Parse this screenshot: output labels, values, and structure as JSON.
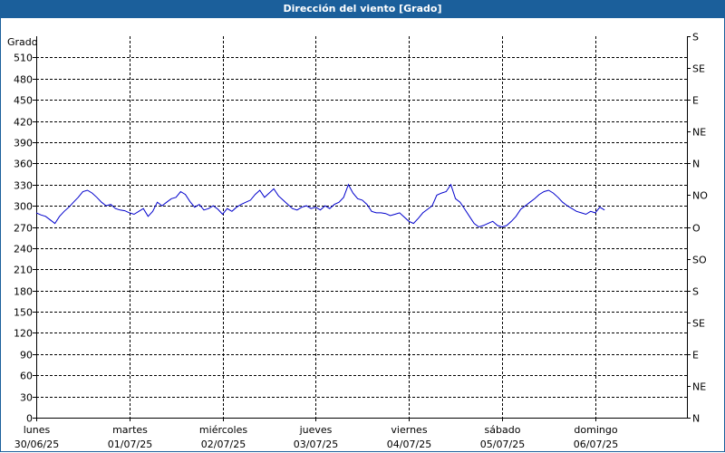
{
  "window": {
    "title": "Dirección del viento [Grado]"
  },
  "colors": {
    "titlebar": "#1b5f9b",
    "series": "#0000cc",
    "grid": "#000000"
  },
  "chart_data": {
    "type": "line",
    "title": "Dirección del viento [Grado]",
    "ylabel": "Grado",
    "ylim": [
      0,
      540
    ],
    "yticks": [
      0,
      30,
      60,
      90,
      120,
      150,
      180,
      210,
      240,
      270,
      300,
      330,
      360,
      390,
      420,
      450,
      480,
      510
    ],
    "right_axis_labels": [
      "N",
      "NE",
      "E",
      "SE",
      "S",
      "SO",
      "O",
      "NO",
      "N",
      "NE",
      "E",
      "SE",
      "S"
    ],
    "right_axis_values": [
      0,
      45,
      90,
      135,
      180,
      225,
      270,
      315,
      360,
      405,
      450,
      495,
      540
    ],
    "x_categories": [
      {
        "day": "lunes",
        "date": "30/06/25"
      },
      {
        "day": "martes",
        "date": "01/07/25"
      },
      {
        "day": "miércoles",
        "date": "02/07/25"
      },
      {
        "day": "jueves",
        "date": "03/07/25"
      },
      {
        "day": "viernes",
        "date": "04/07/25"
      },
      {
        "day": "sábado",
        "date": "05/07/25"
      },
      {
        "day": "domingo",
        "date": "06/07/25"
      }
    ],
    "grid": true,
    "series": [
      {
        "x": [
          0,
          0.05,
          0.1,
          0.15,
          0.2,
          0.25,
          0.3,
          0.35,
          0.4,
          0.45,
          0.5,
          0.55,
          0.6,
          0.65,
          0.7,
          0.75,
          0.8,
          0.85,
          0.9,
          0.95,
          1.0,
          1.05,
          1.1,
          1.15,
          1.2,
          1.25,
          1.3,
          1.35,
          1.4,
          1.45,
          1.5,
          1.55,
          1.6,
          1.65,
          1.7,
          1.75,
          1.8,
          1.85,
          1.9,
          1.95,
          2.0,
          2.05,
          2.1,
          2.15,
          2.2,
          2.25,
          2.3,
          2.35,
          2.4,
          2.45,
          2.5,
          2.55,
          2.6,
          2.65,
          2.7,
          2.75,
          2.8,
          2.85,
          2.9,
          2.95,
          3.0,
          3.05,
          3.1,
          3.15,
          3.2,
          3.25,
          3.3,
          3.35,
          3.4,
          3.45,
          3.5,
          3.55,
          3.6,
          3.65,
          3.7,
          3.75,
          3.8,
          3.85,
          3.9,
          3.95,
          4.0,
          4.05,
          4.1,
          4.15,
          4.2,
          4.25,
          4.3,
          4.35,
          4.4,
          4.45,
          4.5,
          4.55,
          4.6,
          4.65,
          4.7,
          4.75,
          4.8,
          4.85,
          4.9,
          4.95,
          5.0,
          5.05,
          5.1,
          5.15,
          5.2,
          5.25,
          5.3,
          5.35,
          5.4,
          5.45,
          5.5,
          5.55,
          5.6,
          5.65,
          5.7,
          5.75,
          5.8,
          5.85,
          5.9,
          5.95,
          6.0,
          6.05,
          6.1
        ],
        "values": [
          290,
          287,
          285,
          280,
          275,
          285,
          292,
          298,
          305,
          312,
          320,
          322,
          318,
          312,
          305,
          300,
          302,
          296,
          294,
          293,
          290,
          288,
          292,
          296,
          285,
          292,
          305,
          300,
          305,
          310,
          312,
          320,
          316,
          306,
          298,
          302,
          294,
          296,
          300,
          295,
          288,
          296,
          292,
          298,
          302,
          305,
          308,
          316,
          322,
          312,
          318,
          324,
          314,
          308,
          302,
          296,
          294,
          298,
          300,
          296,
          298,
          294,
          300,
          296,
          302,
          305,
          312,
          330,
          318,
          310,
          308,
          302,
          292,
          290,
          290,
          289,
          286,
          288,
          290,
          284,
          278,
          275,
          282,
          290,
          295,
          300,
          315,
          318,
          320,
          330,
          310,
          305,
          295,
          285,
          275,
          270,
          272,
          275,
          278,
          272,
          270,
          272,
          278,
          285,
          295,
          300,
          305,
          310,
          316,
          320,
          322,
          318,
          312,
          305,
          300,
          296,
          292,
          290,
          288,
          292,
          290,
          298,
          294
        ]
      }
    ]
  }
}
